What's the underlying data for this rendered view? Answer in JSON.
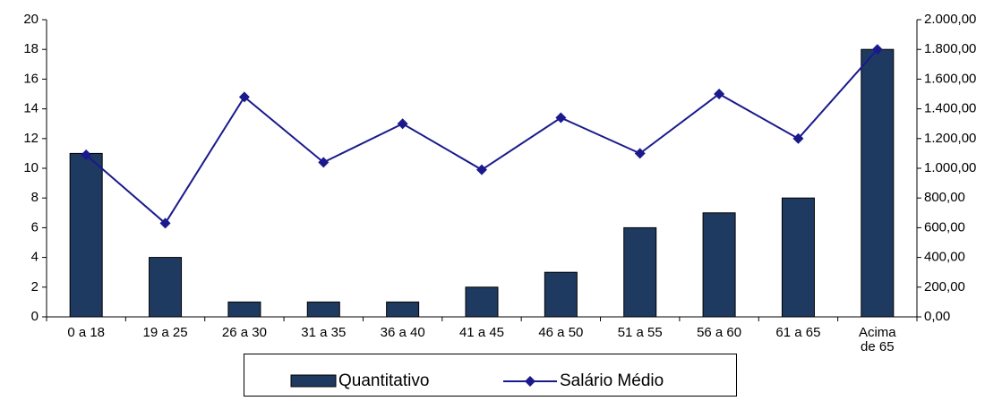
{
  "chart_data": {
    "type": "bar_line",
    "categories": [
      "0 a 18",
      "19 a 25",
      "26 a 30",
      "31 a 35",
      "36 a 40",
      "41 a 45",
      "46 a 50",
      "51 a 55",
      "56 a 60",
      "61 a 65",
      "Acima de 65"
    ],
    "series": [
      {
        "name": "Quantitativo",
        "type": "bar",
        "color": "#1f3a60",
        "values": [
          11,
          4,
          1,
          1,
          1,
          2,
          3,
          6,
          7,
          8,
          18
        ]
      },
      {
        "name": "Salário Médio",
        "type": "line",
        "axis": "y2",
        "color": "#1a1a8c",
        "values": [
          1090,
          630,
          1480,
          1040,
          1300,
          990,
          1340,
          1100,
          1500,
          1200,
          1800
        ]
      }
    ],
    "ylim": [
      0,
      20
    ],
    "yticks": [
      0,
      2,
      4,
      6,
      8,
      10,
      12,
      14,
      16,
      18,
      20
    ],
    "y2lim": [
      0,
      2000
    ],
    "y2ticks": [
      {
        "value": 0,
        "label": "0,00"
      },
      {
        "value": 200,
        "label": "200,00"
      },
      {
        "value": 400,
        "label": "400,00"
      },
      {
        "value": 600,
        "label": "600,00"
      },
      {
        "value": 800,
        "label": "800,00"
      },
      {
        "value": 1000,
        "label": "1.000,00"
      },
      {
        "value": 1200,
        "label": "1.200,00"
      },
      {
        "value": 1400,
        "label": "1.400,00"
      },
      {
        "value": 1600,
        "label": "1.600,00"
      },
      {
        "value": 1800,
        "label": "1.800,00"
      },
      {
        "value": 2000,
        "label": "2.000,00"
      }
    ],
    "legend": "bottom"
  }
}
